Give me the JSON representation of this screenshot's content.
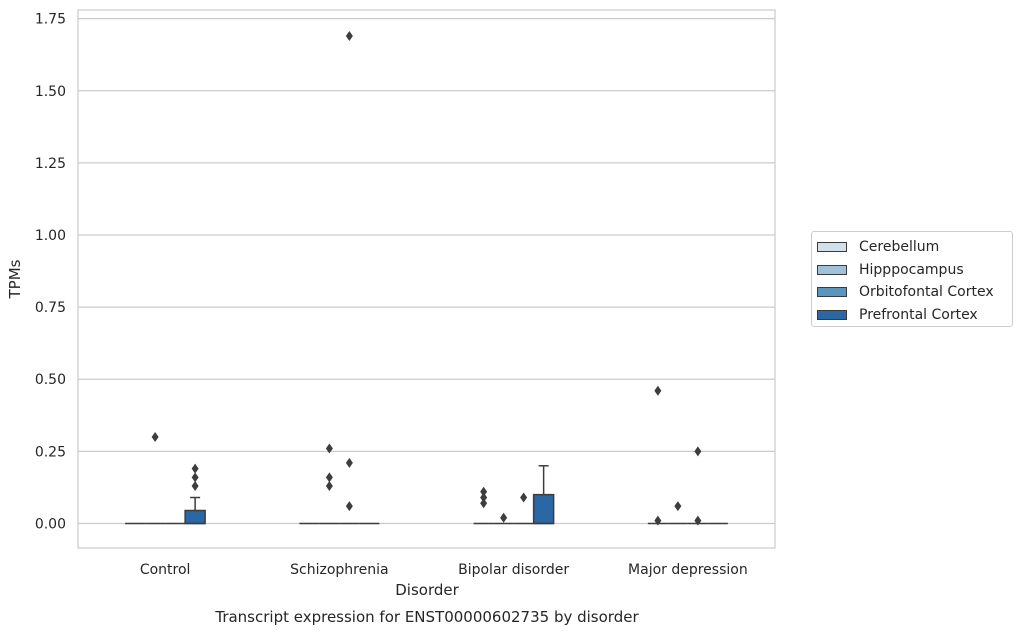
{
  "chart_data": {
    "type": "box",
    "title": "Transcript expression for ENST00000602735 by disorder",
    "xlabel": "Disorder",
    "ylabel": "TPMs",
    "categories": [
      "Control",
      "Schizophrenia",
      "Bipolar disorder",
      "Major depression"
    ],
    "ylim": [
      -0.085,
      1.78
    ],
    "yticks": [
      "0.00",
      "0.25",
      "0.50",
      "0.75",
      "1.00",
      "1.25",
      "1.50",
      "1.75"
    ],
    "grid": "horizontal",
    "legend_position": "right",
    "series": [
      {
        "name": "Cerebellum",
        "color": "#d1e1ec",
        "boxes": [
          {
            "q1": 0,
            "median": 0,
            "q3": 0,
            "whisker_low": 0,
            "whisker_high": 0,
            "outliers": []
          },
          {
            "q1": 0,
            "median": 0,
            "q3": 0,
            "whisker_low": 0,
            "whisker_high": 0,
            "outliers": []
          },
          {
            "q1": 0,
            "median": 0,
            "q3": 0,
            "whisker_low": 0,
            "whisker_high": 0,
            "outliers": [
              0.11,
              0.09,
              0.07
            ]
          },
          {
            "q1": 0,
            "median": 0,
            "q3": 0,
            "whisker_low": 0,
            "whisker_high": 0,
            "outliers": [
              0.46,
              0.01
            ]
          }
        ]
      },
      {
        "name": "Hipppocampus",
        "color": "#9ec2d9",
        "boxes": [
          {
            "q1": 0,
            "median": 0,
            "q3": 0,
            "whisker_low": 0,
            "whisker_high": 0,
            "outliers": [
              0.3
            ]
          },
          {
            "q1": 0,
            "median": 0,
            "q3": 0,
            "whisker_low": 0,
            "whisker_high": 0,
            "outliers": [
              0.26,
              0.16,
              0.13
            ]
          },
          {
            "q1": 0,
            "median": 0,
            "q3": 0,
            "whisker_low": 0,
            "whisker_high": 0,
            "outliers": [
              0.02
            ]
          },
          {
            "q1": 0,
            "median": 0,
            "q3": 0,
            "whisker_low": 0,
            "whisker_high": 0,
            "outliers": [
              0.06
            ]
          }
        ]
      },
      {
        "name": "Orbitofontal Cortex",
        "color": "#5a95bf",
        "boxes": [
          {
            "q1": 0,
            "median": 0,
            "q3": 0,
            "whisker_low": 0,
            "whisker_high": 0,
            "outliers": []
          },
          {
            "q1": 0,
            "median": 0,
            "q3": 0,
            "whisker_low": 0,
            "whisker_high": 0,
            "outliers": [
              1.69,
              0.21,
              0.06
            ]
          },
          {
            "q1": 0,
            "median": 0,
            "q3": 0,
            "whisker_low": 0,
            "whisker_high": 0,
            "outliers": [
              0.09
            ]
          },
          {
            "q1": 0,
            "median": 0,
            "q3": 0,
            "whisker_low": 0,
            "whisker_high": 0,
            "outliers": [
              0.25,
              0.01
            ]
          }
        ]
      },
      {
        "name": "Prefrontal Cortex",
        "color": "#2a67a5",
        "boxes": [
          {
            "q1": 0,
            "median": 0,
            "q3": 0.045,
            "whisker_low": 0,
            "whisker_high": 0.09,
            "outliers": [
              0.19,
              0.16,
              0.13
            ]
          },
          {
            "q1": 0,
            "median": 0,
            "q3": 0,
            "whisker_low": 0,
            "whisker_high": 0,
            "outliers": []
          },
          {
            "q1": 0,
            "median": 0,
            "q3": 0.1,
            "whisker_low": 0,
            "whisker_high": 0.2,
            "outliers": []
          },
          {
            "q1": 0,
            "median": 0,
            "q3": 0,
            "whisker_low": 0,
            "whisker_high": 0,
            "outliers": []
          }
        ]
      }
    ]
  }
}
